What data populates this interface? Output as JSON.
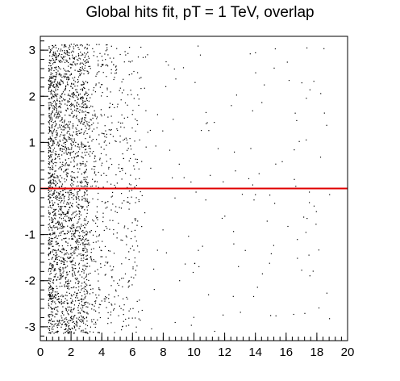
{
  "chart_data": {
    "type": "scatter",
    "title": "Global hits fit, pT = 1 TeV, overlap",
    "xlabel": "",
    "ylabel": "",
    "xlim": [
      0,
      20
    ],
    "ylim": [
      -3.3,
      3.3
    ],
    "x_ticks": [
      0,
      2,
      4,
      6,
      8,
      10,
      12,
      14,
      16,
      18,
      20
    ],
    "y_ticks": [
      -3,
      -2,
      -1,
      0,
      1,
      2,
      3
    ],
    "grid": false,
    "legend": false,
    "colors": {
      "points": "#000000",
      "fit_line": "#e00000",
      "axes": "#000000"
    },
    "point_cloud_estimate": {
      "description_of_density": "dense band x in [0.5, 3] over full y range, sparse tail to x ~ 19",
      "dense_x_range": [
        0.5,
        3.0
      ],
      "sparse_x_range": [
        3.0,
        19.0
      ],
      "y_range": [
        -3.14,
        3.14
      ],
      "approx_points": 3000
    },
    "reference_line": {
      "y": 0,
      "x_from": 0,
      "x_to": 20,
      "color": "#e00000"
    }
  }
}
